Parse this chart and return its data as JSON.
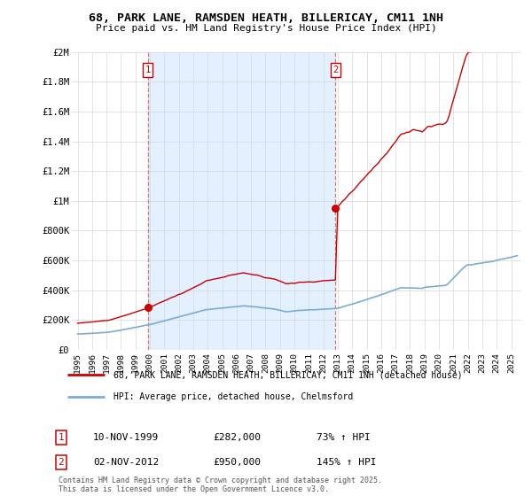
{
  "title": "68, PARK LANE, RAMSDEN HEATH, BILLERICAY, CM11 1NH",
  "subtitle": "Price paid vs. HM Land Registry's House Price Index (HPI)",
  "legend_red": "68, PARK LANE, RAMSDEN HEATH, BILLERICAY, CM11 1NH (detached house)",
  "legend_blue": "HPI: Average price, detached house, Chelmsford",
  "sale1_label": "1",
  "sale1_date": "10-NOV-1999",
  "sale1_price": "£282,000",
  "sale1_hpi": "73% ↑ HPI",
  "sale2_label": "2",
  "sale2_date": "02-NOV-2012",
  "sale2_price": "£950,000",
  "sale2_hpi": "145% ↑ HPI",
  "footnote": "Contains HM Land Registry data © Crown copyright and database right 2025.\nThis data is licensed under the Open Government Licence v3.0.",
  "background_color": "#ffffff",
  "grid_color": "#d8d8d8",
  "red_color": "#cc0000",
  "blue_color": "#7aadd4",
  "shade_color": "#ddeeff",
  "dashed_color": "#dd6666",
  "ylim": [
    0,
    2000000
  ],
  "xlim_left": 1994.6,
  "xlim_right": 2025.7,
  "yticks": [
    0,
    200000,
    400000,
    600000,
    800000,
    1000000,
    1200000,
    1400000,
    1600000,
    1800000,
    2000000
  ],
  "ytick_labels": [
    "£0",
    "£200K",
    "£400K",
    "£600K",
    "£800K",
    "£1M",
    "£1.2M",
    "£1.4M",
    "£1.6M",
    "£1.8M",
    "£2M"
  ],
  "sale1_x": 1999.86,
  "sale1_y": 282000,
  "sale2_x": 2012.84,
  "sale2_y": 950000,
  "vline1_x": 1999.86,
  "vline2_x": 2012.84
}
